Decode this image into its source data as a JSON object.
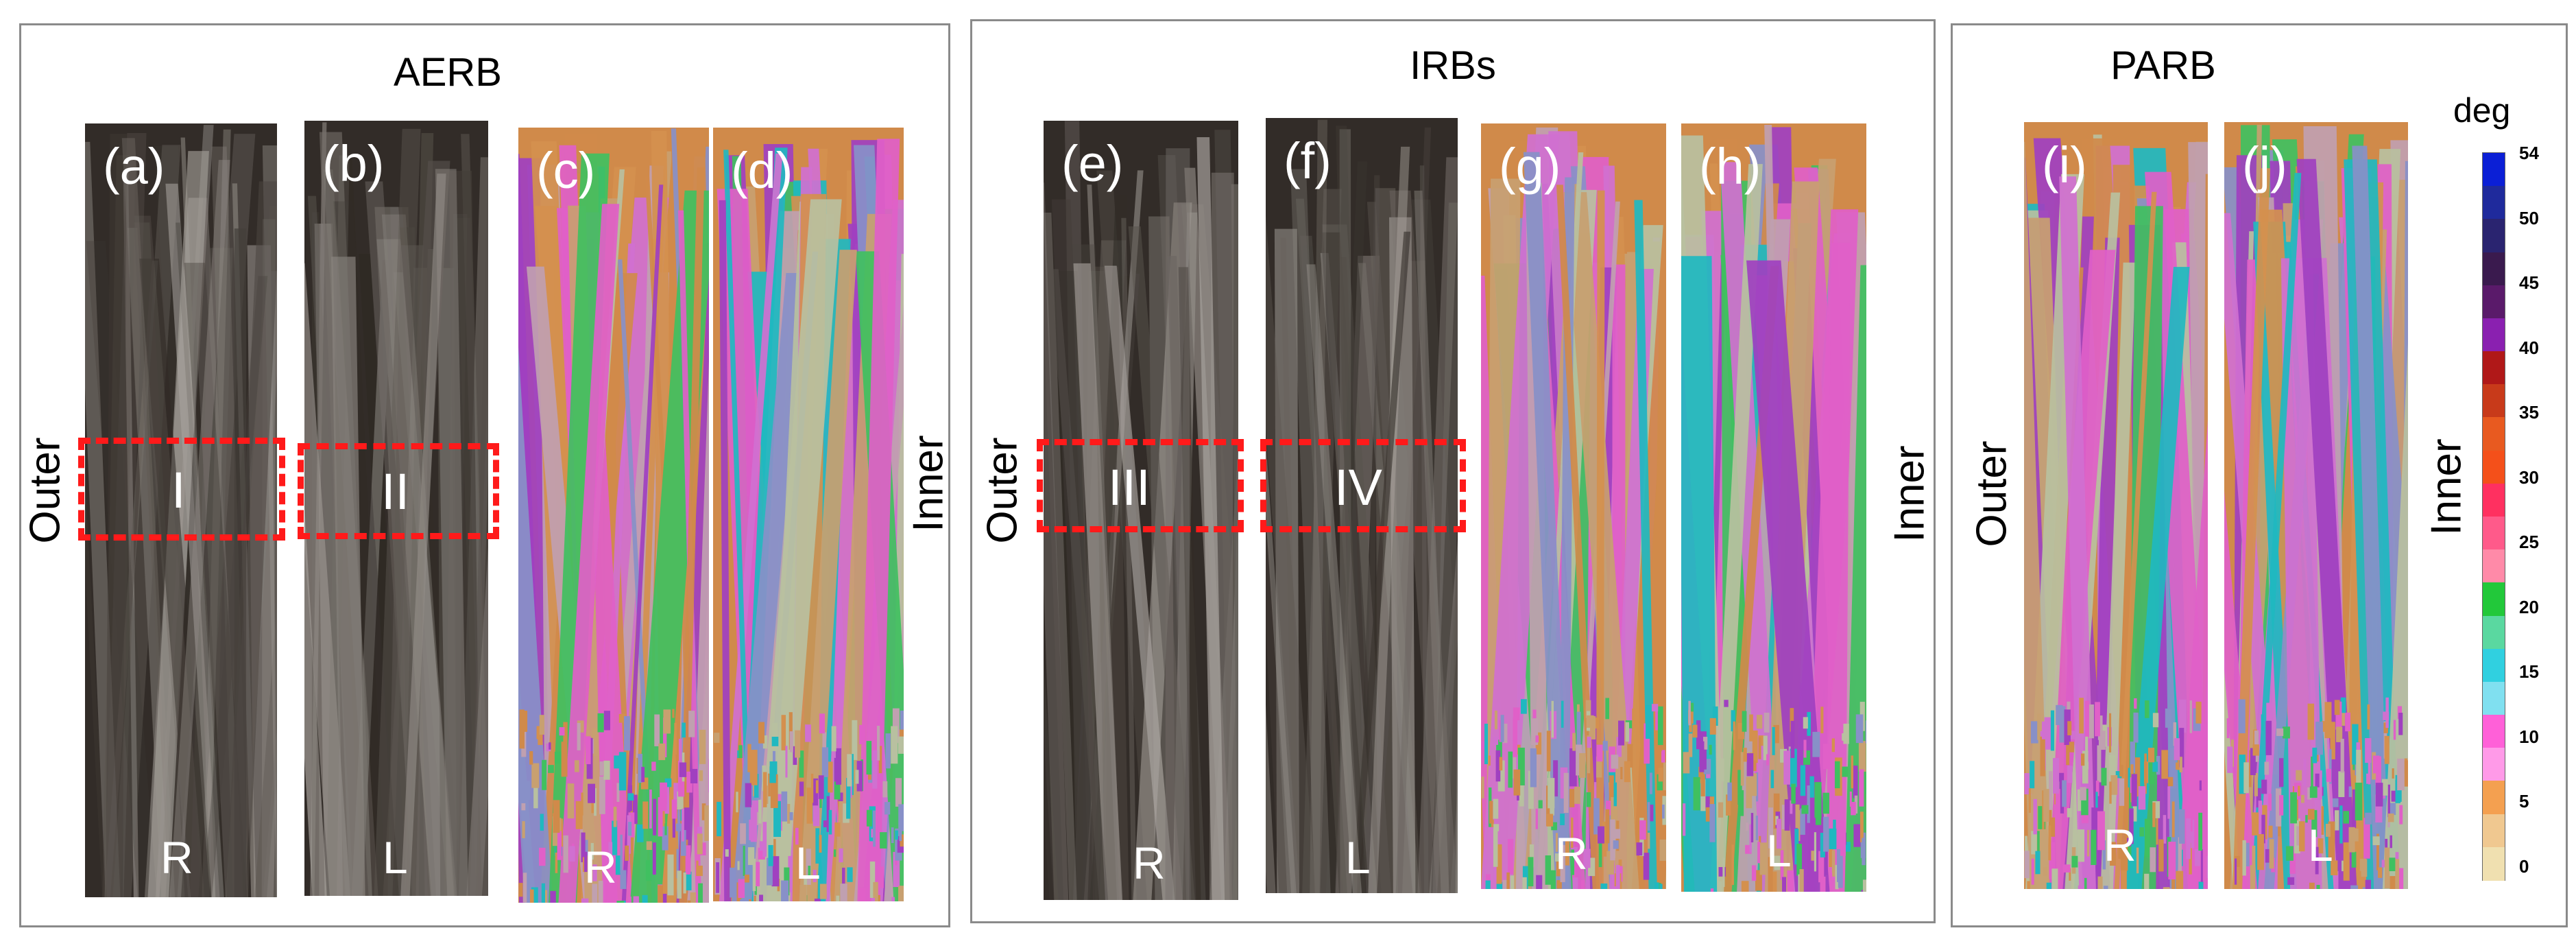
{
  "groups": {
    "aerb": {
      "title": "AERB"
    },
    "irbs": {
      "title": "IRBs"
    },
    "parb": {
      "title": "PARB"
    }
  },
  "panels": [
    {
      "id": "a",
      "label": "(a)",
      "side": "R",
      "kind": "photo"
    },
    {
      "id": "b",
      "label": "(b)",
      "side": "L",
      "kind": "photo"
    },
    {
      "id": "c",
      "label": "(c)",
      "side": "R",
      "kind": "ebsd"
    },
    {
      "id": "d",
      "label": "(d)",
      "side": "L",
      "kind": "ebsd"
    },
    {
      "id": "e",
      "label": "(e)",
      "side": "R",
      "kind": "photo"
    },
    {
      "id": "f",
      "label": "(f)",
      "side": "L",
      "kind": "photo"
    },
    {
      "id": "g",
      "label": "(g)",
      "side": "R",
      "kind": "ebsd"
    },
    {
      "id": "h",
      "label": "(h)",
      "side": "L",
      "kind": "ebsd"
    },
    {
      "id": "i",
      "label": "(i)",
      "side": "R",
      "kind": "ebsd"
    },
    {
      "id": "j",
      "label": "(j)",
      "side": "L",
      "kind": "ebsd"
    }
  ],
  "regions": [
    "I",
    "II",
    "III",
    "IV"
  ],
  "side_labels": {
    "outer_aerb": "Outer",
    "inner_aerb": "Inner",
    "outer_irbs": "Outer",
    "inner_irbs": "Inner",
    "outer_parb": "Outer",
    "inner_parb": "Inner"
  },
  "colorbar": {
    "title": "deg",
    "ticks": [
      "54",
      "50",
      "45",
      "40",
      "35",
      "30",
      "25",
      "20",
      "15",
      "10",
      "5",
      "0"
    ],
    "palette": [
      "#0b1fd6",
      "#1f2a9c",
      "#2a2470",
      "#3a1a4e",
      "#5a1a6a",
      "#8a20b0",
      "#b01818",
      "#c83a1a",
      "#e85a20",
      "#f4501a",
      "#ff3060",
      "#ff5a8a",
      "#ff8aa8",
      "#22c83a",
      "#5ad8a0",
      "#30d0e0",
      "#80e0f0",
      "#ff60d8",
      "#ff9ae8",
      "#f4a050",
      "#f0c890",
      "#f0e0b0"
    ]
  }
}
